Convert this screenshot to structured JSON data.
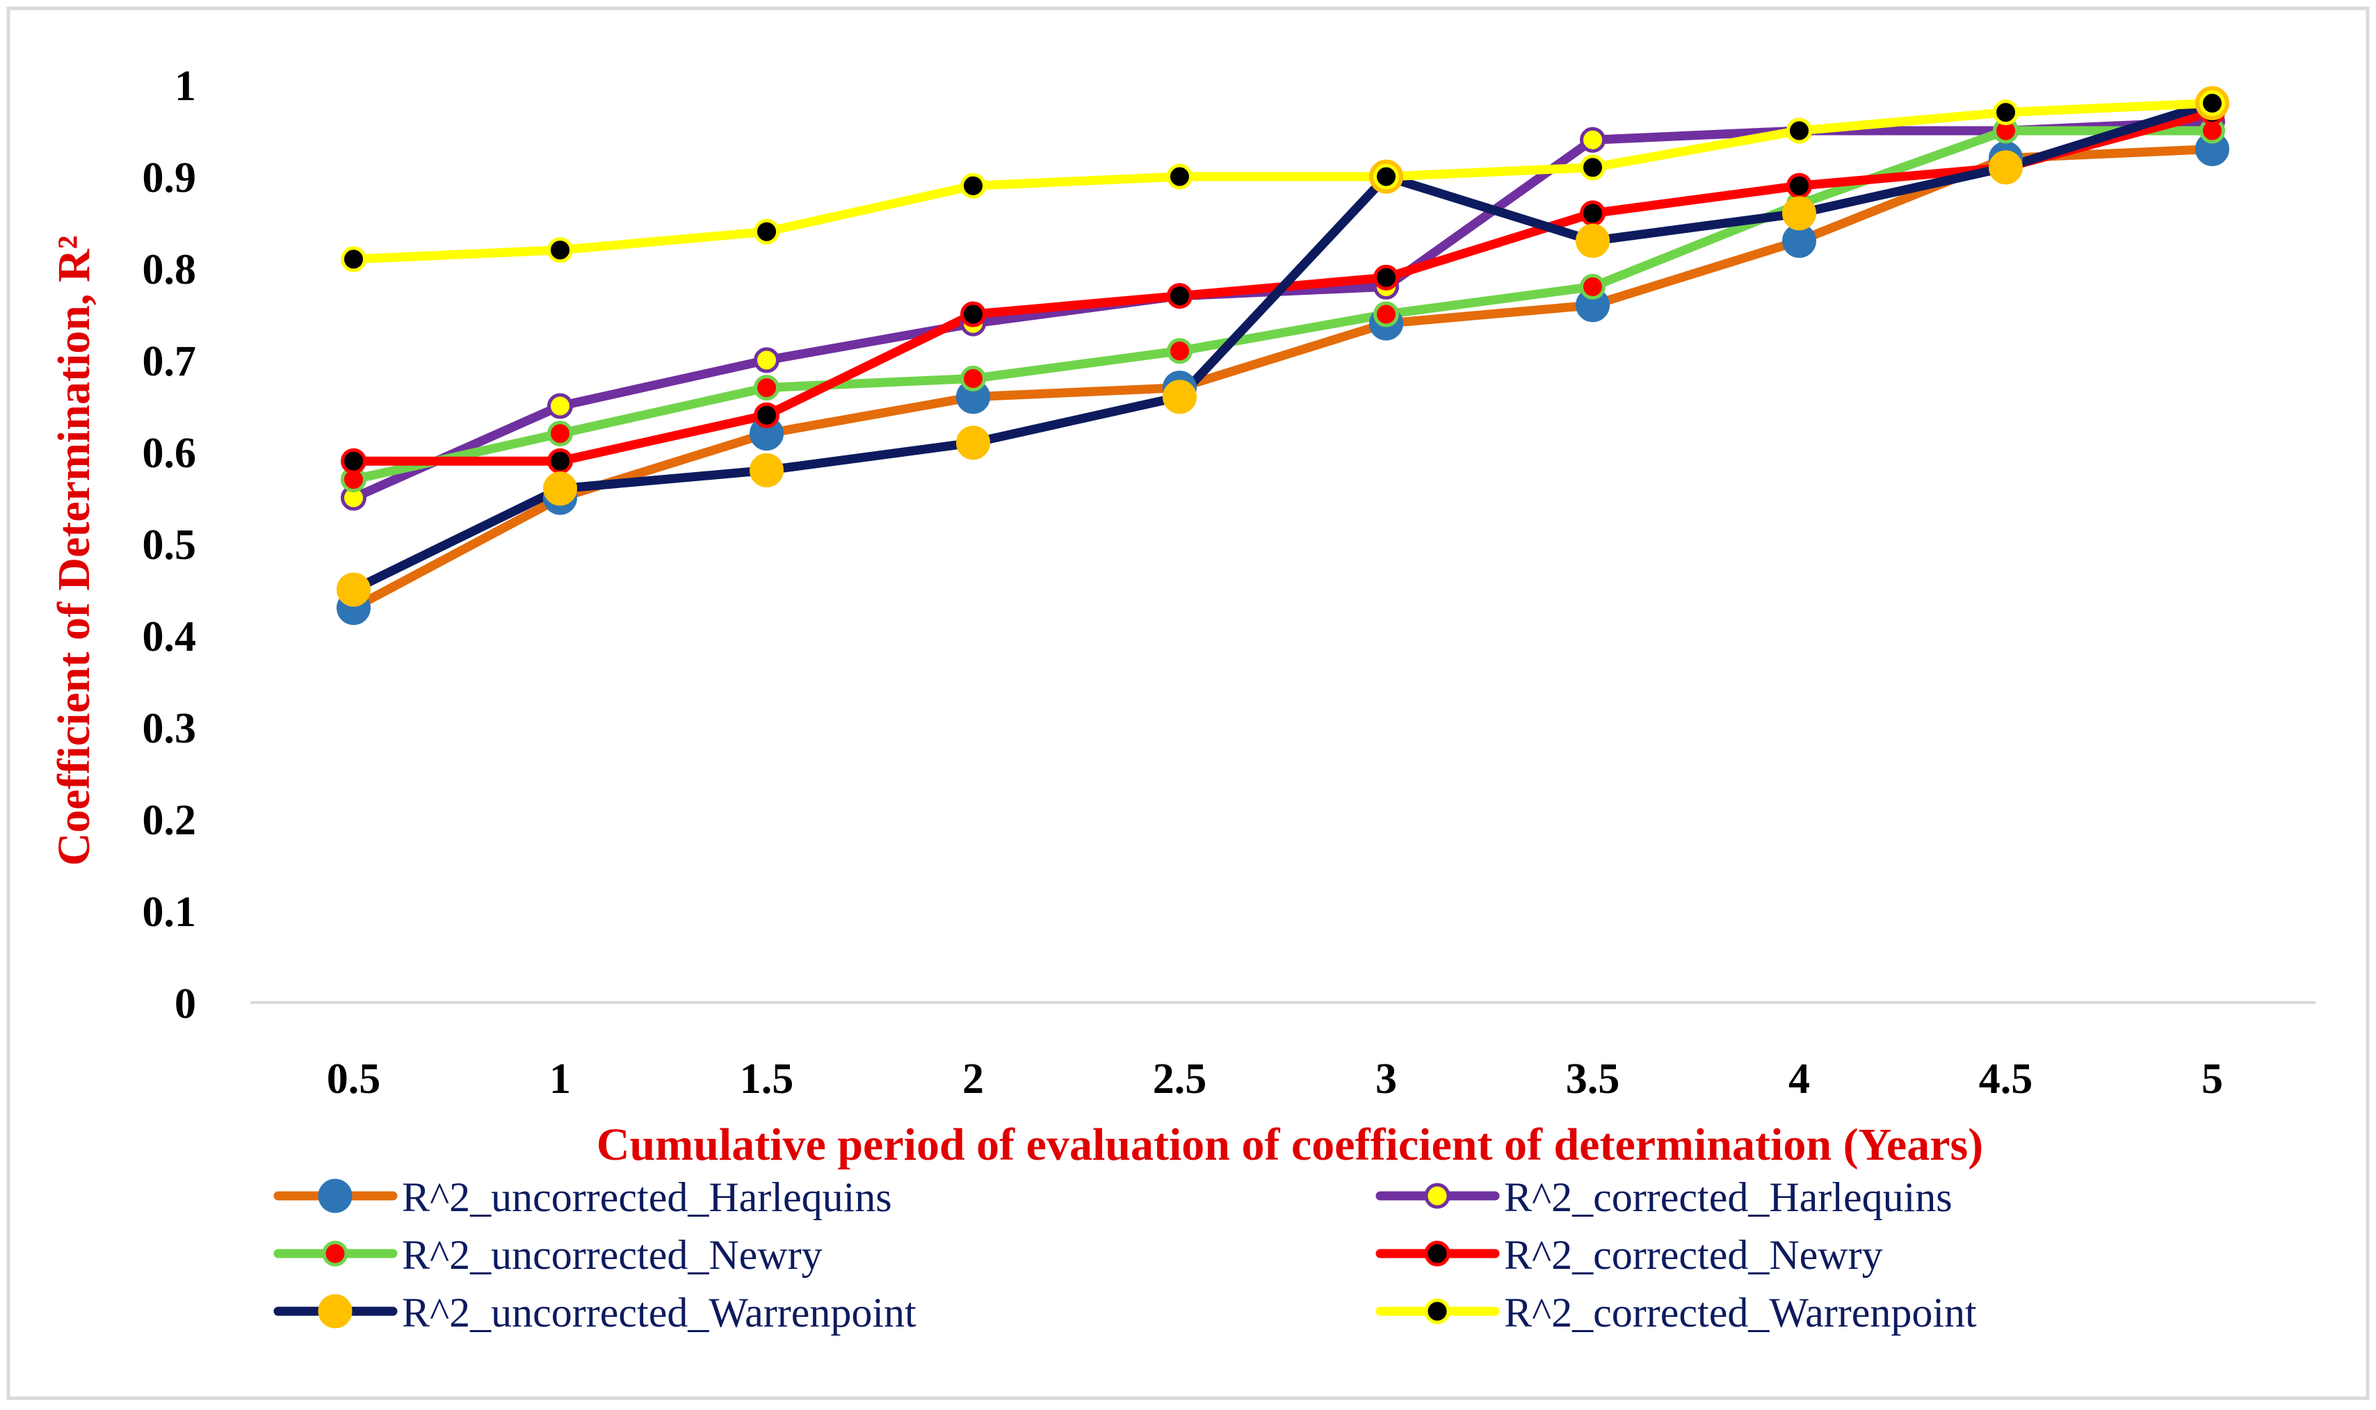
{
  "chart_data": {
    "type": "line",
    "title": "",
    "xlabel": "Cumulative period of evaluation of coefficient of determination (Years)",
    "ylabel": "Coefficient of Determination, R²",
    "categories": [
      "0.5",
      "1",
      "1.5",
      "2",
      "2.5",
      "3",
      "3.5",
      "4",
      "4.5",
      "5"
    ],
    "x": [
      0.5,
      1,
      1.5,
      2,
      2.5,
      3,
      3.5,
      4,
      4.5,
      5
    ],
    "ylim": [
      0,
      1
    ],
    "yticks": [
      "0",
      "0.1",
      "0.2",
      "0.3",
      "0.4",
      "0.5",
      "0.6",
      "0.7",
      "0.8",
      "0.9",
      "1"
    ],
    "grid": false,
    "legend_position": "bottom",
    "series": [
      {
        "name": "R^2_uncorrected_Harlequins",
        "line_color": "#e46c0a",
        "marker_fill": "#2e75b6",
        "marker_edge": "#2e75b6",
        "marker_size": "large",
        "values": [
          0.43,
          0.55,
          0.62,
          0.66,
          0.67,
          0.74,
          0.76,
          0.83,
          0.92,
          0.93
        ]
      },
      {
        "name": "R^2_corrected_Harlequins",
        "line_color": "#7030a0",
        "marker_fill": "#ffff00",
        "marker_edge": "#7030a0",
        "marker_size": "medium",
        "values": [
          0.55,
          0.65,
          0.7,
          0.74,
          0.77,
          0.78,
          0.94,
          0.95,
          0.95,
          0.96
        ]
      },
      {
        "name": "R^2_uncorrected_Newry",
        "line_color": "#70d44b",
        "marker_fill": "#ff0000",
        "marker_edge": "#70d44b",
        "marker_size": "medium",
        "values": [
          0.57,
          0.62,
          0.67,
          0.68,
          0.71,
          0.75,
          0.78,
          0.87,
          0.95,
          0.95
        ]
      },
      {
        "name": "R^2_corrected_Newry",
        "line_color": "#ff0000",
        "marker_fill": "#000000",
        "marker_edge": "#ff0000",
        "marker_size": "medium",
        "values": [
          0.59,
          0.59,
          0.64,
          0.75,
          0.77,
          0.79,
          0.86,
          0.89,
          0.91,
          0.97
        ]
      },
      {
        "name": "R^2_uncorrected_Warrenpoint",
        "line_color": "#0d1b5e",
        "marker_fill": "#ffc000",
        "marker_edge": "#ffc000",
        "marker_size": "large",
        "values": [
          0.45,
          0.56,
          0.58,
          0.61,
          0.66,
          0.9,
          0.83,
          0.86,
          0.91,
          0.98
        ]
      },
      {
        "name": "R^2_corrected_Warrenpoint",
        "line_color": "#ffff00",
        "marker_fill": "#000000",
        "marker_edge": "#ffff00",
        "marker_size": "medium",
        "values": [
          0.81,
          0.82,
          0.84,
          0.89,
          0.9,
          0.9,
          0.91,
          0.95,
          0.97,
          0.98
        ]
      }
    ]
  }
}
